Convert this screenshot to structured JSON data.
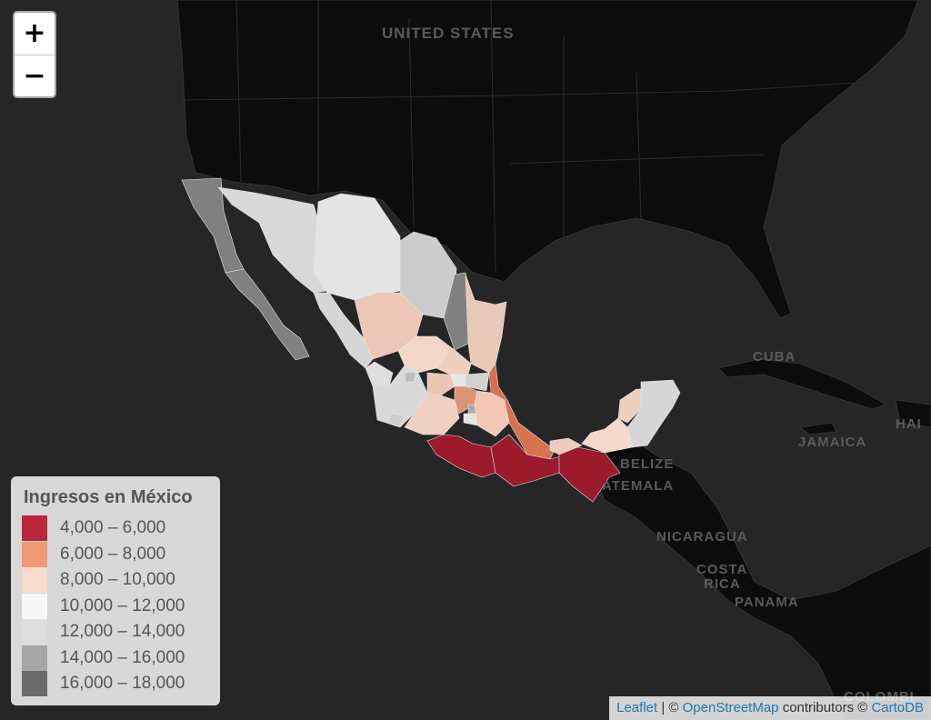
{
  "map": {
    "basemap": "dark",
    "country_labels": [
      {
        "id": "united-states",
        "text": "UNITED STATES"
      },
      {
        "id": "cuba",
        "text": "CUBA"
      },
      {
        "id": "jamaica",
        "text": "JAMAICA"
      },
      {
        "id": "haiti",
        "text": "HAI"
      },
      {
        "id": "belize",
        "text": "BELIZE"
      },
      {
        "id": "guatemala",
        "text": "ATEMALA"
      },
      {
        "id": "nicaragua",
        "text": "NICARAGUA"
      },
      {
        "id": "costa-rica-1",
        "text": "COSTA"
      },
      {
        "id": "costa-rica-2",
        "text": "RICA"
      },
      {
        "id": "panama",
        "text": "PANAMA"
      },
      {
        "id": "colombia",
        "text": "COLOMBI"
      }
    ]
  },
  "zoom": {
    "in_label": "+",
    "out_label": "−"
  },
  "legend": {
    "title": "Ingresos en México",
    "items": [
      {
        "label": "4,000 – 6,000",
        "color": "#b8283a"
      },
      {
        "label": "6,000 – 8,000",
        "color": "#ef9a74"
      },
      {
        "label": "8,000 – 10,000",
        "color": "#fadbcd"
      },
      {
        "label": "10,000 – 12,000",
        "color": "#f7f7f7"
      },
      {
        "label": "12,000 – 14,000",
        "color": "#dddddd"
      },
      {
        "label": "14,000 – 16,000",
        "color": "#a6a6a6"
      },
      {
        "label": "16,000 – 18,000",
        "color": "#6a6a6a"
      }
    ]
  },
  "attribution": {
    "leaflet": "Leaflet",
    "sep": " | © ",
    "osm": "OpenStreetMap",
    "contributors": " contributors © ",
    "carto": "CartoDB"
  }
}
